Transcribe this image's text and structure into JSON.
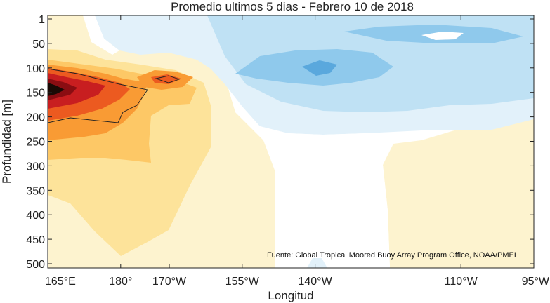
{
  "chart_data": {
    "type": "heatmap",
    "title": "Promedio ultimos 5 dias - Febrero 10 de 2018",
    "xlabel": "Longitud",
    "ylabel": "Profundidad [m]",
    "source_note": "Fuente: Global Tropical Moored Buoy Array Program Office, NOAA/PMEL",
    "x_ticks": [
      {
        "label": "165°E",
        "value": 165
      },
      {
        "label": "180°",
        "value": 180
      },
      {
        "label": "170°W",
        "value": 190
      },
      {
        "label": "155°W",
        "value": 205
      },
      {
        "label": "140°W",
        "value": 220
      },
      {
        "label": "110°W",
        "value": 250
      },
      {
        "label": "95°W",
        "value": 265
      }
    ],
    "y_ticks": [
      "1",
      "50",
      "100",
      "150",
      "200",
      "250",
      "300",
      "350",
      "400",
      "450",
      "500"
    ],
    "xlim": [
      165,
      265
    ],
    "ylim": [
      500,
      1
    ],
    "grid": false,
    "colormap": {
      "warm": [
        "#fdf3cf",
        "#fde39a",
        "#fdc866",
        "#f99b34",
        "#ec5a20",
        "#c81e20",
        "#8a0d12",
        "#1a0a05"
      ],
      "cool": [
        "#e2f1fa",
        "#bfe1f4",
        "#8fc9ec",
        "#5aa8dd"
      ]
    }
  }
}
